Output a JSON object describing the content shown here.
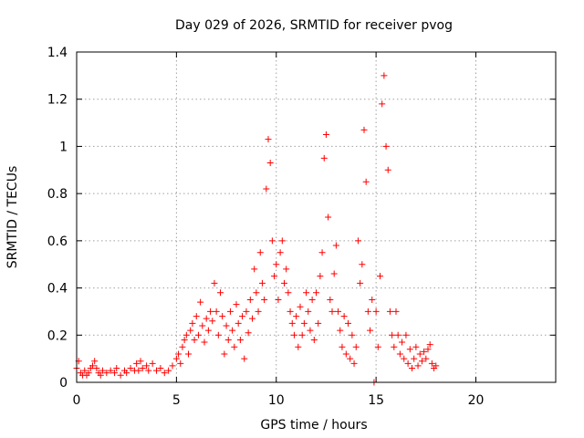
{
  "chart_data": {
    "type": "scatter",
    "title": "Day 029 of 2026, SRMTID for receiver pvog",
    "xlabel": "GPS time / hours",
    "ylabel": "SRMTID / TECUs",
    "xlim": [
      0,
      24
    ],
    "ylim": [
      0,
      1.4
    ],
    "xticks": [
      0,
      5,
      10,
      15,
      20
    ],
    "yticks": [
      0,
      0.2,
      0.4,
      0.6,
      0.8,
      1.0,
      1.2,
      1.4
    ],
    "xtick_labels": [
      "0",
      "5",
      "10",
      "15",
      "20"
    ],
    "ytick_labels": [
      "0",
      "0.2",
      "0.4",
      "0.6",
      "0.8",
      "1",
      "1.2",
      "1.4"
    ],
    "grid": true,
    "marker": "+",
    "color": "#ff0000",
    "series": [
      {
        "name": "SRMTID",
        "points": [
          [
            0.0,
            0.06
          ],
          [
            0.1,
            0.09
          ],
          [
            0.2,
            0.04
          ],
          [
            0.3,
            0.03
          ],
          [
            0.4,
            0.05
          ],
          [
            0.5,
            0.03
          ],
          [
            0.6,
            0.04
          ],
          [
            0.7,
            0.06
          ],
          [
            0.8,
            0.07
          ],
          [
            0.9,
            0.09
          ],
          [
            1.0,
            0.06
          ],
          [
            1.1,
            0.04
          ],
          [
            1.2,
            0.03
          ],
          [
            1.3,
            0.05
          ],
          [
            1.5,
            0.04
          ],
          [
            1.7,
            0.05
          ],
          [
            1.9,
            0.04
          ],
          [
            2.0,
            0.06
          ],
          [
            2.2,
            0.03
          ],
          [
            2.4,
            0.05
          ],
          [
            2.5,
            0.04
          ],
          [
            2.7,
            0.06
          ],
          [
            2.9,
            0.05
          ],
          [
            3.0,
            0.08
          ],
          [
            3.1,
            0.05
          ],
          [
            3.2,
            0.09
          ],
          [
            3.3,
            0.06
          ],
          [
            3.5,
            0.07
          ],
          [
            3.6,
            0.05
          ],
          [
            3.8,
            0.08
          ],
          [
            4.0,
            0.05
          ],
          [
            4.2,
            0.06
          ],
          [
            4.4,
            0.04
          ],
          [
            4.6,
            0.05
          ],
          [
            4.8,
            0.07
          ],
          [
            5.0,
            0.1
          ],
          [
            5.1,
            0.12
          ],
          [
            5.2,
            0.08
          ],
          [
            5.3,
            0.15
          ],
          [
            5.4,
            0.18
          ],
          [
            5.5,
            0.2
          ],
          [
            5.6,
            0.12
          ],
          [
            5.7,
            0.22
          ],
          [
            5.8,
            0.25
          ],
          [
            5.9,
            0.18
          ],
          [
            6.0,
            0.28
          ],
          [
            6.1,
            0.2
          ],
          [
            6.2,
            0.34
          ],
          [
            6.3,
            0.24
          ],
          [
            6.4,
            0.17
          ],
          [
            6.5,
            0.27
          ],
          [
            6.6,
            0.22
          ],
          [
            6.7,
            0.3
          ],
          [
            6.8,
            0.26
          ],
          [
            6.9,
            0.42
          ],
          [
            7.0,
            0.3
          ],
          [
            7.1,
            0.2
          ],
          [
            7.2,
            0.38
          ],
          [
            7.3,
            0.28
          ],
          [
            7.4,
            0.12
          ],
          [
            7.5,
            0.24
          ],
          [
            7.6,
            0.18
          ],
          [
            7.7,
            0.3
          ],
          [
            7.8,
            0.22
          ],
          [
            7.9,
            0.15
          ],
          [
            8.0,
            0.33
          ],
          [
            8.1,
            0.25
          ],
          [
            8.2,
            0.18
          ],
          [
            8.3,
            0.28
          ],
          [
            8.4,
            0.1
          ],
          [
            8.5,
            0.3
          ],
          [
            8.6,
            0.21
          ],
          [
            8.7,
            0.35
          ],
          [
            8.8,
            0.27
          ],
          [
            8.9,
            0.48
          ],
          [
            9.0,
            0.38
          ],
          [
            9.1,
            0.3
          ],
          [
            9.2,
            0.55
          ],
          [
            9.3,
            0.42
          ],
          [
            9.4,
            0.35
          ],
          [
            9.5,
            0.82
          ],
          [
            9.6,
            1.03
          ],
          [
            9.7,
            0.93
          ],
          [
            9.8,
            0.6
          ],
          [
            9.9,
            0.45
          ],
          [
            10.0,
            0.5
          ],
          [
            10.1,
            0.35
          ],
          [
            10.2,
            0.55
          ],
          [
            10.3,
            0.6
          ],
          [
            10.4,
            0.42
          ],
          [
            10.5,
            0.48
          ],
          [
            10.6,
            0.38
          ],
          [
            10.7,
            0.3
          ],
          [
            10.8,
            0.25
          ],
          [
            10.9,
            0.2
          ],
          [
            11.0,
            0.28
          ],
          [
            11.1,
            0.15
          ],
          [
            11.2,
            0.32
          ],
          [
            11.3,
            0.2
          ],
          [
            11.4,
            0.25
          ],
          [
            11.5,
            0.38
          ],
          [
            11.6,
            0.3
          ],
          [
            11.7,
            0.22
          ],
          [
            11.8,
            0.35
          ],
          [
            11.9,
            0.18
          ],
          [
            12.0,
            0.38
          ],
          [
            12.1,
            0.25
          ],
          [
            12.2,
            0.45
          ],
          [
            12.3,
            0.55
          ],
          [
            12.4,
            0.95
          ],
          [
            12.5,
            1.05
          ],
          [
            12.6,
            0.7
          ],
          [
            12.7,
            0.35
          ],
          [
            12.8,
            0.3
          ],
          [
            12.9,
            0.46
          ],
          [
            13.0,
            0.58
          ],
          [
            13.1,
            0.3
          ],
          [
            13.2,
            0.22
          ],
          [
            13.3,
            0.15
          ],
          [
            13.4,
            0.28
          ],
          [
            13.5,
            0.12
          ],
          [
            13.6,
            0.25
          ],
          [
            13.7,
            0.1
          ],
          [
            13.8,
            0.2
          ],
          [
            13.9,
            0.08
          ],
          [
            14.0,
            0.15
          ],
          [
            14.1,
            0.6
          ],
          [
            14.2,
            0.42
          ],
          [
            14.3,
            0.5
          ],
          [
            14.4,
            1.07
          ],
          [
            14.5,
            0.85
          ],
          [
            14.6,
            0.3
          ],
          [
            14.7,
            0.22
          ],
          [
            14.8,
            0.35
          ],
          [
            14.9,
            0.0
          ],
          [
            15.0,
            0.3
          ],
          [
            15.1,
            0.15
          ],
          [
            15.2,
            0.45
          ],
          [
            15.3,
            1.18
          ],
          [
            15.4,
            1.3
          ],
          [
            15.5,
            1.0
          ],
          [
            15.6,
            0.9
          ],
          [
            15.7,
            0.3
          ],
          [
            15.8,
            0.2
          ],
          [
            15.9,
            0.15
          ],
          [
            16.0,
            0.3
          ],
          [
            16.1,
            0.2
          ],
          [
            16.2,
            0.12
          ],
          [
            16.3,
            0.17
          ],
          [
            16.4,
            0.1
          ],
          [
            16.5,
            0.2
          ],
          [
            16.6,
            0.08
          ],
          [
            16.7,
            0.14
          ],
          [
            16.8,
            0.06
          ],
          [
            16.9,
            0.1
          ],
          [
            17.0,
            0.15
          ],
          [
            17.1,
            0.07
          ],
          [
            17.2,
            0.12
          ],
          [
            17.3,
            0.09
          ],
          [
            17.4,
            0.13
          ],
          [
            17.5,
            0.1
          ],
          [
            17.6,
            0.14
          ],
          [
            17.7,
            0.16
          ],
          [
            17.8,
            0.08
          ],
          [
            17.9,
            0.06
          ],
          [
            18.0,
            0.07
          ]
        ]
      }
    ]
  }
}
